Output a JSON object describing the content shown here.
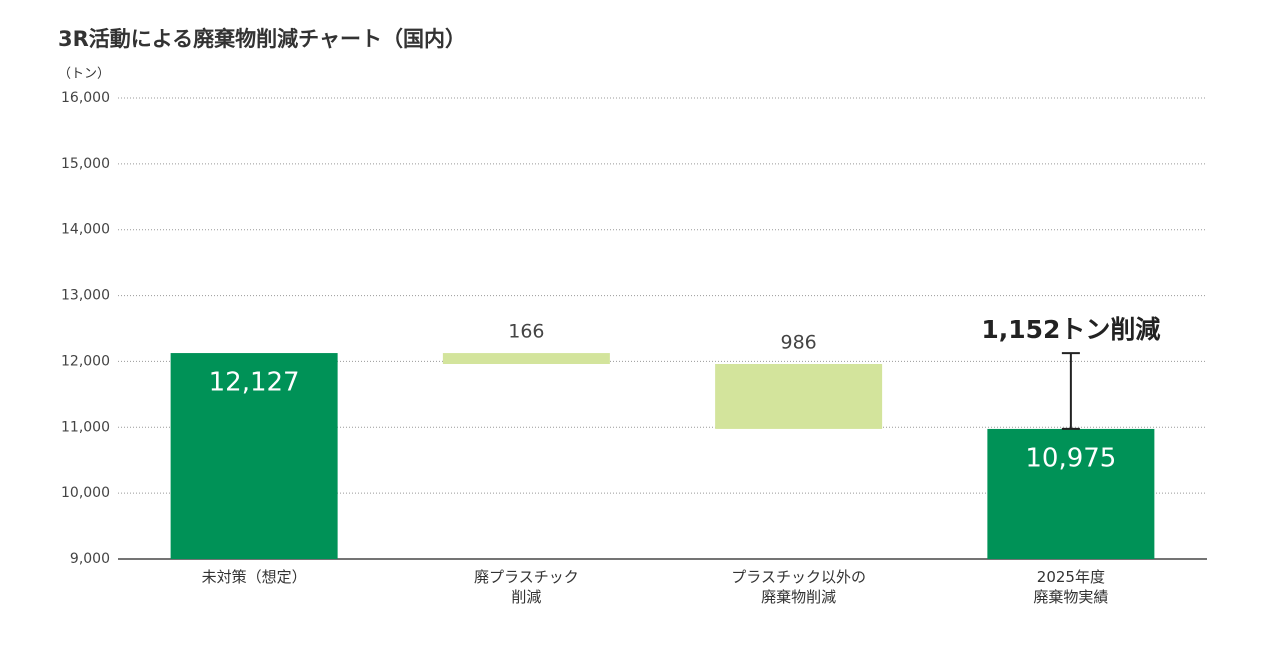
{
  "chart_data": {
    "type": "waterfall",
    "title": "3R活動による廃棄物削減チャート（国内）",
    "y_axis_label": "（トン）",
    "categories": [
      "未対策（想定）",
      "廃プラスチック\n削減",
      "プラスチック以外の\n廃棄物削減",
      "2025年度\n廃棄物実績"
    ],
    "values": [
      12127,
      166,
      986,
      10975
    ],
    "value_labels": [
      "12,127",
      "166",
      "986",
      "10,975"
    ],
    "measures": [
      "total",
      "decrease",
      "decrease",
      "total"
    ],
    "colors": {
      "total": "#009257",
      "decrease": "#d3e49c"
    },
    "ylim": [
      9000,
      16000
    ],
    "yticks": [
      {
        "value": 9000,
        "label": "9,000"
      },
      {
        "value": 10000,
        "label": "10,000"
      },
      {
        "value": 11000,
        "label": "11,000"
      },
      {
        "value": 12000,
        "label": "12,000"
      },
      {
        "value": 13000,
        "label": "13,000"
      },
      {
        "value": 14000,
        "label": "14,000"
      },
      {
        "value": 15000,
        "label": "15,000"
      },
      {
        "value": 16000,
        "label": "16,000"
      }
    ],
    "grid": true,
    "annotation": "1,152トン削減"
  }
}
